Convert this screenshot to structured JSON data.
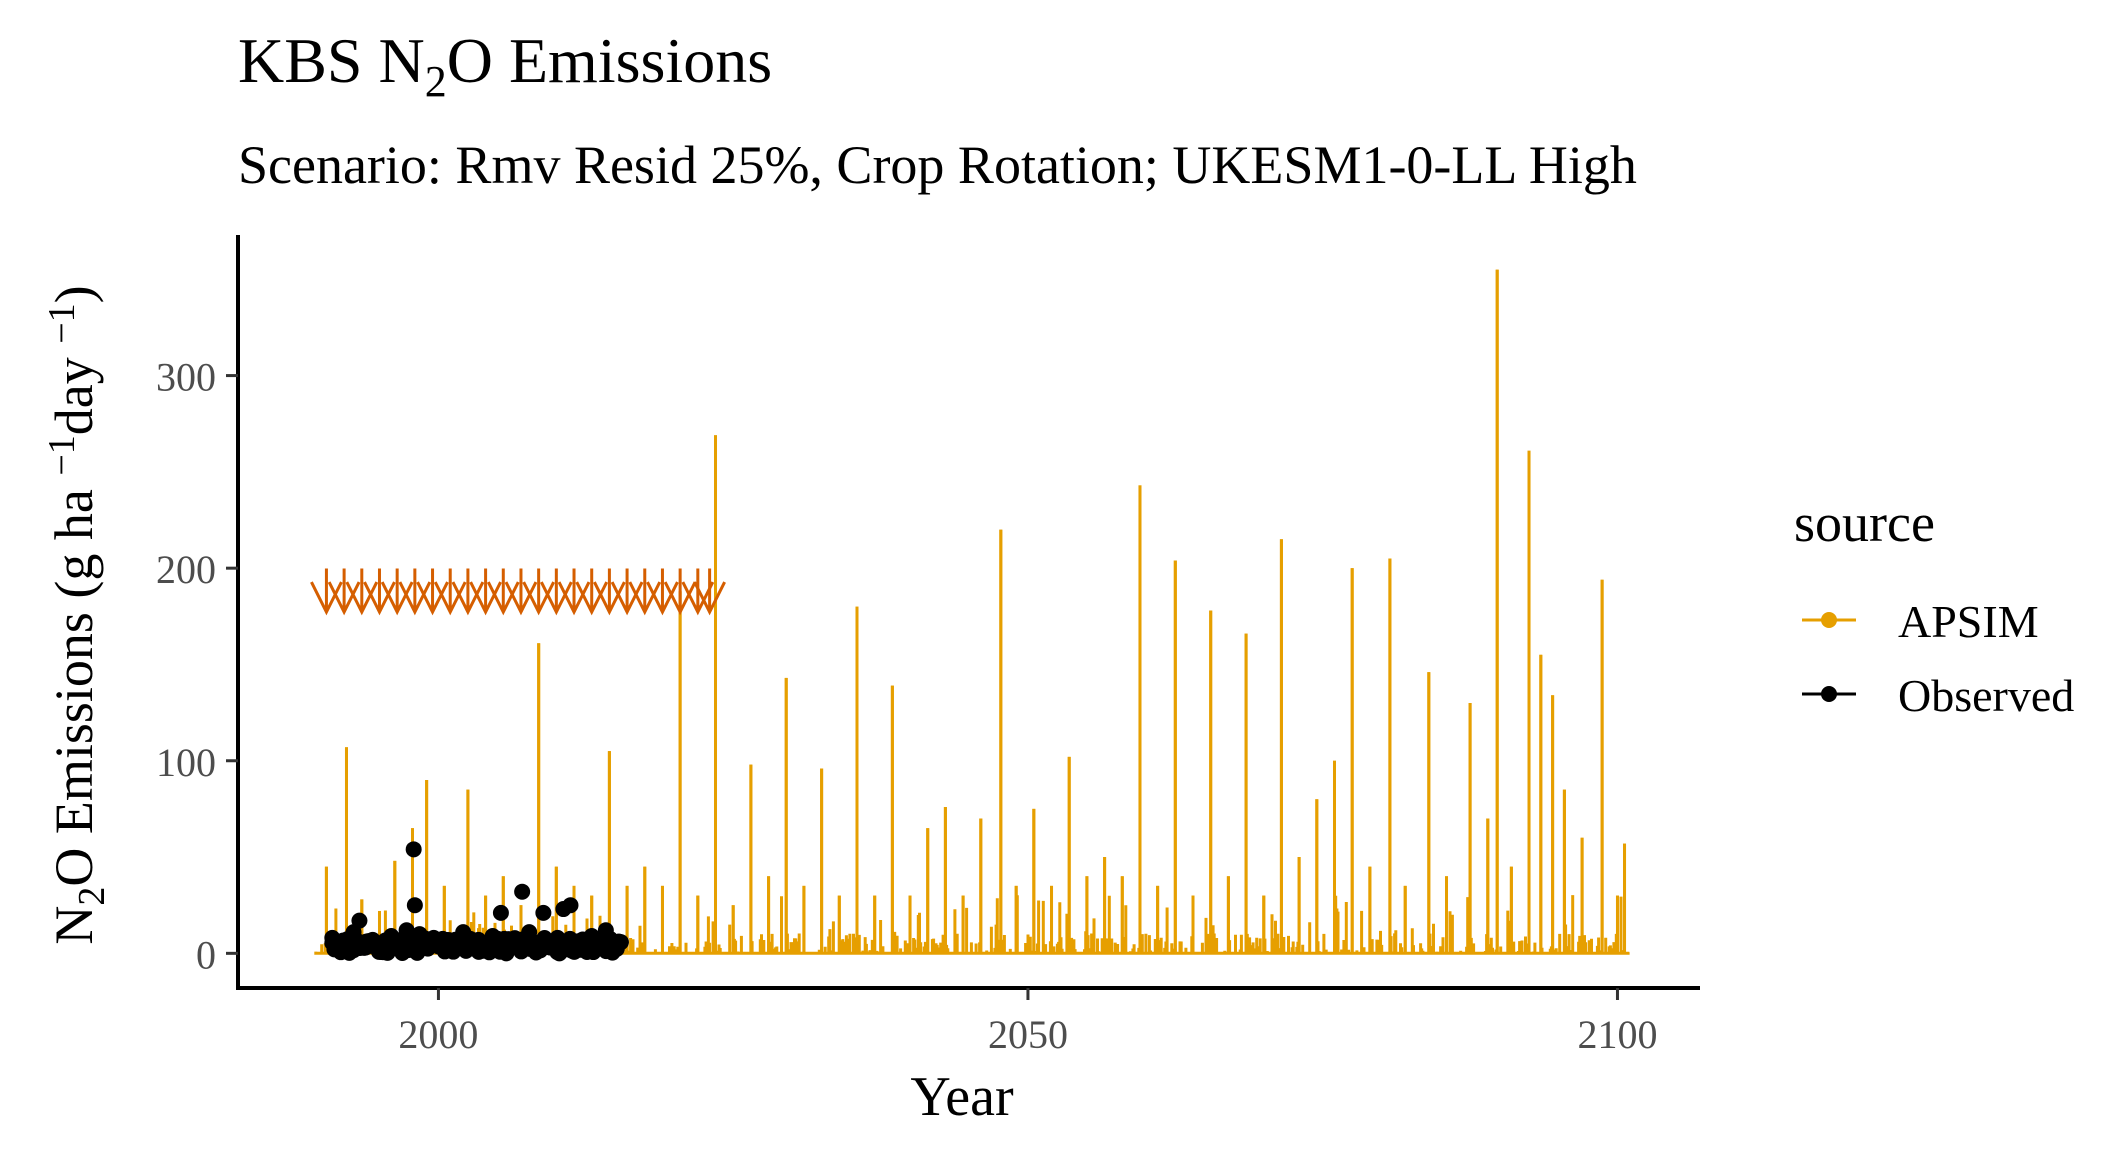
{
  "chart_data": {
    "type": "line",
    "title": "KBS N₂O Emissions",
    "title_parts": {
      "pre": "KBS N",
      "sub": "2",
      "post": "O Emissions"
    },
    "subtitle": "Scenario: Rmv Resid 25%, Crop Rotation; UKESM1-0-LL High",
    "xlabel": "Year",
    "ylabel": "N₂O Emissions (g ha⁻¹day⁻¹)",
    "ylabel_parts": {
      "a": "N",
      "a_sub": "2",
      "b": "O Emissions (g ha ",
      "c": "−1",
      "d": "day ",
      "e": "−1",
      "f": ")"
    },
    "xlim": [
      1983,
      2107
    ],
    "ylim": [
      -18,
      373
    ],
    "x_ticks": [
      2000,
      2050,
      2100
    ],
    "y_ticks": [
      0,
      100,
      200,
      300
    ],
    "grid": false,
    "legend": {
      "title": "source",
      "position": "right",
      "entries": [
        {
          "label": "APSIM",
          "color": "#E69F00"
        },
        {
          "label": "Observed",
          "color": "#000000"
        }
      ]
    },
    "series": [
      {
        "name": "APSIM",
        "kind": "spike-line",
        "color": "#E69F00",
        "x_range": [
          1989.5,
          2101.0
        ],
        "baseline": 0,
        "noise_max": 8,
        "peaks": [
          {
            "x": 1990.5,
            "y": 45
          },
          {
            "x": 1992.2,
            "y": 107
          },
          {
            "x": 1993.5,
            "y": 28
          },
          {
            "x": 1995.0,
            "y": 22
          },
          {
            "x": 1996.3,
            "y": 48
          },
          {
            "x": 1997.8,
            "y": 65
          },
          {
            "x": 1999.0,
            "y": 90
          },
          {
            "x": 2000.5,
            "y": 35
          },
          {
            "x": 2002.5,
            "y": 85
          },
          {
            "x": 2004.0,
            "y": 30
          },
          {
            "x": 2005.5,
            "y": 40
          },
          {
            "x": 2007.0,
            "y": 25
          },
          {
            "x": 2008.5,
            "y": 161
          },
          {
            "x": 2010.0,
            "y": 45
          },
          {
            "x": 2011.5,
            "y": 35
          },
          {
            "x": 2013.0,
            "y": 30
          },
          {
            "x": 2014.5,
            "y": 105
          },
          {
            "x": 2016.0,
            "y": 35
          },
          {
            "x": 2017.5,
            "y": 45
          },
          {
            "x": 2019.0,
            "y": 35
          },
          {
            "x": 2020.5,
            "y": 188
          },
          {
            "x": 2022.0,
            "y": 30
          },
          {
            "x": 2023.5,
            "y": 269
          },
          {
            "x": 2025.0,
            "y": 25
          },
          {
            "x": 2026.5,
            "y": 98
          },
          {
            "x": 2028.0,
            "y": 40
          },
          {
            "x": 2029.5,
            "y": 143
          },
          {
            "x": 2031.0,
            "y": 35
          },
          {
            "x": 2032.5,
            "y": 96
          },
          {
            "x": 2034.0,
            "y": 30
          },
          {
            "x": 2035.5,
            "y": 180
          },
          {
            "x": 2037.0,
            "y": 30
          },
          {
            "x": 2038.5,
            "y": 139
          },
          {
            "x": 2040.0,
            "y": 30
          },
          {
            "x": 2041.5,
            "y": 65
          },
          {
            "x": 2043.0,
            "y": 76
          },
          {
            "x": 2044.5,
            "y": 30
          },
          {
            "x": 2046.0,
            "y": 70
          },
          {
            "x": 2047.7,
            "y": 220
          },
          {
            "x": 2049.0,
            "y": 35
          },
          {
            "x": 2050.5,
            "y": 75
          },
          {
            "x": 2052.0,
            "y": 35
          },
          {
            "x": 2053.5,
            "y": 102
          },
          {
            "x": 2055.0,
            "y": 40
          },
          {
            "x": 2056.5,
            "y": 50
          },
          {
            "x": 2058.0,
            "y": 40
          },
          {
            "x": 2059.5,
            "y": 243
          },
          {
            "x": 2061.0,
            "y": 35
          },
          {
            "x": 2062.5,
            "y": 204
          },
          {
            "x": 2064.0,
            "y": 30
          },
          {
            "x": 2065.5,
            "y": 178
          },
          {
            "x": 2067.0,
            "y": 40
          },
          {
            "x": 2068.5,
            "y": 166
          },
          {
            "x": 2070.0,
            "y": 30
          },
          {
            "x": 2071.5,
            "y": 215
          },
          {
            "x": 2073.0,
            "y": 50
          },
          {
            "x": 2074.5,
            "y": 80
          },
          {
            "x": 2076.0,
            "y": 100
          },
          {
            "x": 2077.5,
            "y": 200
          },
          {
            "x": 2079.0,
            "y": 45
          },
          {
            "x": 2080.7,
            "y": 205
          },
          {
            "x": 2082.0,
            "y": 35
          },
          {
            "x": 2084.0,
            "y": 146
          },
          {
            "x": 2085.5,
            "y": 40
          },
          {
            "x": 2087.5,
            "y": 130
          },
          {
            "x": 2089.0,
            "y": 70
          },
          {
            "x": 2089.8,
            "y": 355
          },
          {
            "x": 2091.0,
            "y": 45
          },
          {
            "x": 2092.5,
            "y": 261
          },
          {
            "x": 2093.5,
            "y": 155
          },
          {
            "x": 2094.5,
            "y": 134
          },
          {
            "x": 2095.5,
            "y": 85
          },
          {
            "x": 2097.0,
            "y": 60
          },
          {
            "x": 2098.7,
            "y": 194
          },
          {
            "x": 2100.0,
            "y": 30
          },
          {
            "x": 2100.6,
            "y": 57
          }
        ]
      },
      {
        "name": "Observed",
        "kind": "points",
        "color": "#000000",
        "points": [
          {
            "x": 1991.0,
            "y": 8
          },
          {
            "x": 1991.5,
            "y": 2
          },
          {
            "x": 1992.0,
            "y": 5
          },
          {
            "x": 1992.8,
            "y": 11
          },
          {
            "x": 1993.3,
            "y": 17
          },
          {
            "x": 1993.8,
            "y": 3
          },
          {
            "x": 1994.5,
            "y": 6
          },
          {
            "x": 1995.2,
            "y": 2
          },
          {
            "x": 1996.0,
            "y": 9
          },
          {
            "x": 1996.7,
            "y": 4
          },
          {
            "x": 1997.3,
            "y": 12
          },
          {
            "x": 1997.9,
            "y": 54
          },
          {
            "x": 1998.0,
            "y": 25
          },
          {
            "x": 1998.4,
            "y": 10
          },
          {
            "x": 1999.0,
            "y": 3
          },
          {
            "x": 1999.6,
            "y": 8
          },
          {
            "x": 2000.2,
            "y": 5
          },
          {
            "x": 2000.9,
            "y": 2
          },
          {
            "x": 2001.5,
            "y": 6
          },
          {
            "x": 2002.1,
            "y": 11
          },
          {
            "x": 2002.8,
            "y": 3
          },
          {
            "x": 2003.4,
            "y": 7
          },
          {
            "x": 2004.0,
            "y": 2
          },
          {
            "x": 2004.6,
            "y": 9
          },
          {
            "x": 2005.3,
            "y": 21
          },
          {
            "x": 2005.9,
            "y": 4
          },
          {
            "x": 2006.5,
            "y": 7
          },
          {
            "x": 2007.1,
            "y": 32
          },
          {
            "x": 2007.7,
            "y": 11
          },
          {
            "x": 2008.3,
            "y": 5
          },
          {
            "x": 2008.9,
            "y": 21
          },
          {
            "x": 2009.5,
            "y": 3
          },
          {
            "x": 2010.1,
            "y": 8
          },
          {
            "x": 2010.6,
            "y": 23
          },
          {
            "x": 2011.2,
            "y": 25
          },
          {
            "x": 2011.8,
            "y": 6
          },
          {
            "x": 2012.4,
            "y": 2
          },
          {
            "x": 2013.0,
            "y": 9
          },
          {
            "x": 2013.6,
            "y": 4
          },
          {
            "x": 2014.2,
            "y": 12
          },
          {
            "x": 2014.8,
            "y": 3
          },
          {
            "x": 2015.3,
            "y": 6
          }
        ],
        "dense_band": {
          "x_range": [
            1991.0,
            2015.5
          ],
          "y_range": [
            0,
            8
          ]
        }
      },
      {
        "name": "",
        "kind": "markers",
        "color": "#D55E00",
        "marker": "down-triangle-tick",
        "y": 185,
        "x": [
          1990.5,
          1992.0,
          1993.5,
          1995.0,
          1996.5,
          1998.0,
          1999.5,
          2001.0,
          2002.5,
          2004.0,
          2005.5,
          2007.0,
          2008.5,
          2010.0,
          2011.5,
          2013.0,
          2014.5,
          2016.0,
          2017.5,
          2019.0,
          2020.5,
          2022.0,
          2023.0
        ]
      }
    ]
  }
}
